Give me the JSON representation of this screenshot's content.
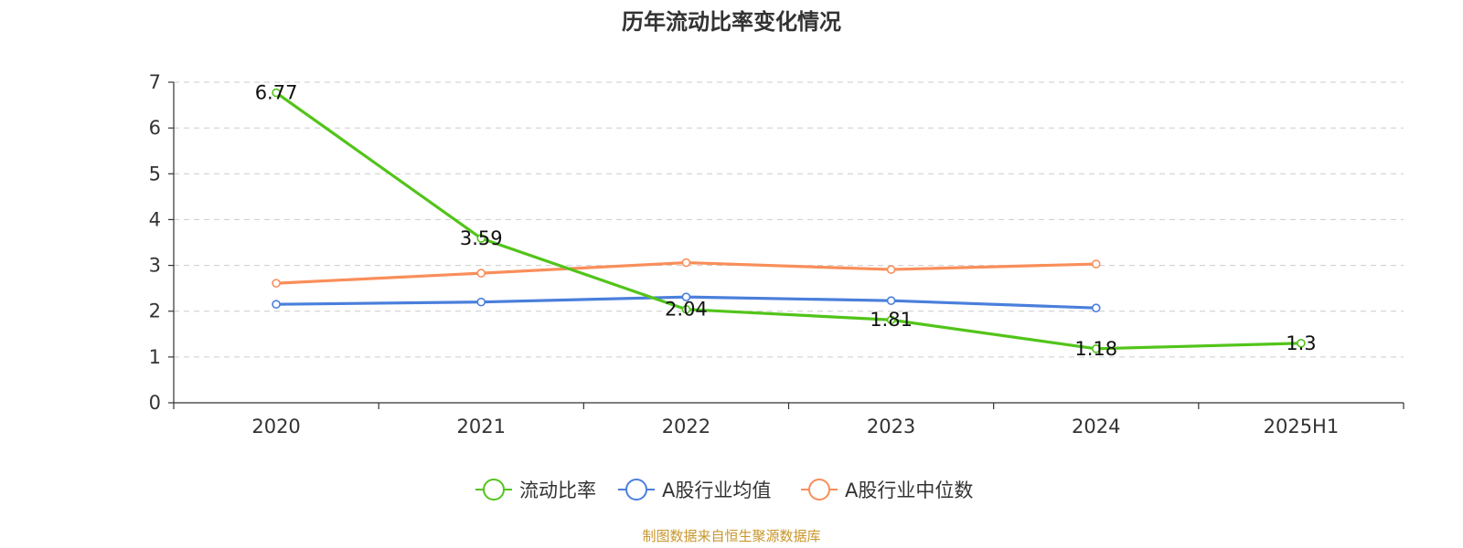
{
  "chart_data": {
    "type": "line",
    "title": "历年流动比率变化情况",
    "categories": [
      "2020",
      "2021",
      "2022",
      "2023",
      "2024",
      "2025H1"
    ],
    "ylim": [
      0,
      7
    ],
    "yticks": [
      "0",
      "1",
      "2",
      "3",
      "4",
      "5",
      "6",
      "7"
    ],
    "grid": true,
    "legend_position": "bottom-center",
    "series": [
      {
        "name": "流动比率",
        "color": "#52c41a",
        "values": [
          6.77,
          3.59,
          2.04,
          1.81,
          1.18,
          1.3
        ],
        "labels": [
          "6.77",
          "3.59",
          "2.04",
          "1.81",
          "1.18",
          "1.3"
        ]
      },
      {
        "name": "A股行业均值",
        "color": "#4a7fdc",
        "values": [
          2.15,
          2.2,
          2.31,
          2.23,
          2.07,
          null
        ]
      },
      {
        "name": "A股行业中位数",
        "color": "#f98e5a",
        "values": [
          2.61,
          2.83,
          3.06,
          2.91,
          3.03,
          null
        ]
      }
    ],
    "source": "制图数据来自恒生聚源数据库"
  }
}
